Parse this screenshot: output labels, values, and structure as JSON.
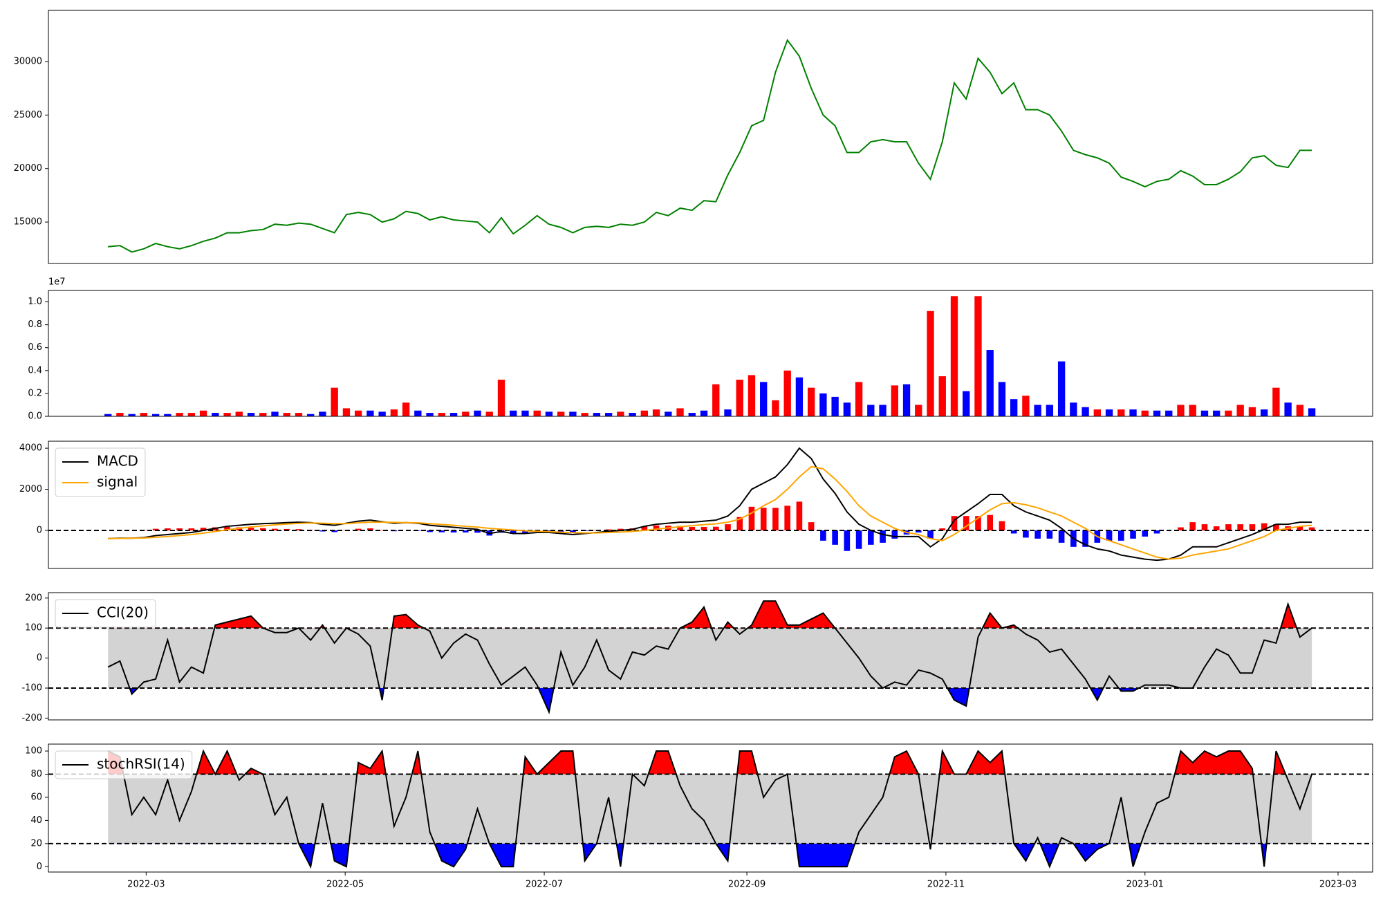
{
  "chart_data": {
    "type": "multi-panel",
    "x": [
      2022.13,
      2022.14,
      2022.15,
      2022.16,
      2022.17,
      2022.18,
      2022.19,
      2022.2,
      2022.21,
      2022.22,
      2022.23,
      2022.24,
      2022.25,
      2022.26,
      2022.27,
      2022.28,
      2022.29,
      2022.3,
      2022.31,
      2022.32,
      2022.33,
      2022.34,
      2022.35,
      2022.36,
      2022.37,
      2022.38,
      2022.39,
      2022.4,
      2022.41,
      2022.42,
      2022.43,
      2022.44,
      2022.45,
      2022.46,
      2022.47,
      2022.48,
      2022.49,
      2022.5,
      2022.51,
      2022.52,
      2022.53,
      2022.54,
      2022.55,
      2022.56,
      2022.57,
      2022.58,
      2022.59,
      2022.6,
      2022.61,
      2022.62,
      2022.63,
      2022.64,
      2022.65,
      2022.66,
      2022.67,
      2022.68,
      2022.69,
      2022.7,
      2022.71,
      2022.72,
      2022.73,
      2022.74,
      2022.75,
      2022.76,
      2022.77,
      2022.78,
      2022.79,
      2022.8,
      2022.81,
      2022.82,
      2022.83,
      2022.84,
      2022.85,
      2022.86,
      2022.87,
      2022.88,
      2022.89,
      2022.9,
      2022.91,
      2022.92,
      2022.93,
      2022.94,
      2022.95,
      2022.96,
      2022.97,
      2022.98,
      2022.99,
      2023.0,
      2023.01,
      2023.02,
      2023.03,
      2023.04,
      2023.05,
      2023.06,
      2023.07,
      2023.08,
      2023.09,
      2023.1,
      2023.11,
      2023.12,
      2023.13,
      2023.14
    ],
    "xlim": [
      2022.08,
      2023.191
    ],
    "xticks": [
      {
        "value": 2022.162,
        "label": "2022-03"
      },
      {
        "value": 2022.329,
        "label": "2022-05"
      },
      {
        "value": 2022.496,
        "label": "2022-07"
      },
      {
        "value": 2022.666,
        "label": "2022-09"
      },
      {
        "value": 2022.833,
        "label": "2022-11"
      },
      {
        "value": 2023.0,
        "label": "2023-01"
      },
      {
        "value": 2023.162,
        "label": "2023-03"
      }
    ],
    "panels": [
      {
        "type": "line",
        "ylim": [
          11130,
          34780
        ],
        "yticks": [
          15000,
          20000,
          25000,
          30000
        ],
        "series": [
          {
            "color": "green",
            "values": [
              12700,
              12800,
              12200,
              12500,
              13000,
              12700,
              12500,
              12800,
              13200,
              13500,
              14000,
              14000,
              14200,
              14300,
              14800,
              14700,
              14900,
              14800,
              14400,
              14000,
              15700,
              15900,
              15700,
              15000,
              15300,
              16000,
              15800,
              15200,
              15500,
              15200,
              15100,
              15000,
              14000,
              15400,
              13900,
              14700,
              15600,
              14800,
              14500,
              14000,
              14500,
              14600,
              14500,
              14800,
              14700,
              15000,
              15900,
              15600,
              16300,
              16100,
              17000,
              16900,
              19400,
              21500,
              24000,
              24500,
              29000,
              32000,
              30500,
              27500,
              25000,
              24000,
              21500,
              21500,
              22500,
              22700,
              22500,
              22500,
              20500,
              19000,
              22500,
              28000,
              26500,
              30300,
              29000,
              27000,
              28000,
              25500,
              25500,
              25000,
              23500,
              21700,
              21300,
              21000,
              20500,
              19200,
              18800,
              18300,
              18800,
              19000,
              19800,
              19300,
              18500,
              18500,
              19000,
              19700,
              21000,
              21200,
              20300,
              20100,
              21700,
              21700
            ]
          }
        ]
      },
      {
        "type": "bar",
        "ylim": [
          0,
          1.1
        ],
        "offset_text": "1e7",
        "yticks": [
          {
            "value": 0,
            "label": "0.0"
          },
          0.2,
          0.4,
          0.6,
          0.8,
          {
            "value": 1,
            "label": "1.0"
          }
        ],
        "values": [
          0.02,
          0.03,
          0.02,
          0.03,
          0.02,
          0.02,
          0.03,
          0.03,
          0.05,
          0.03,
          0.03,
          0.04,
          0.03,
          0.03,
          0.04,
          0.03,
          0.03,
          0.02,
          0.04,
          0.25,
          0.07,
          0.05,
          0.05,
          0.04,
          0.06,
          0.12,
          0.05,
          0.03,
          0.03,
          0.03,
          0.04,
          0.05,
          0.04,
          0.32,
          0.05,
          0.05,
          0.05,
          0.04,
          0.04,
          0.04,
          0.03,
          0.03,
          0.03,
          0.04,
          0.03,
          0.05,
          0.06,
          0.04,
          0.07,
          0.03,
          0.05,
          0.28,
          0.06,
          0.32,
          0.36,
          0.3,
          0.14,
          0.4,
          0.34,
          0.25,
          0.2,
          0.17,
          0.12,
          0.3,
          0.1,
          0.1,
          0.27,
          0.28,
          0.1,
          0.92,
          0.35,
          1.05,
          0.22,
          1.05,
          0.58,
          0.3,
          0.15,
          0.18,
          0.1,
          0.1,
          0.48,
          0.12,
          0.08,
          0.06,
          0.06,
          0.06,
          0.06,
          0.05,
          0.05,
          0.05,
          0.1,
          0.1,
          0.05,
          0.05,
          0.05,
          0.1,
          0.08,
          0.06,
          0.25,
          0.12,
          0.1,
          0.07
        ],
        "colors": [
          "blue",
          "red",
          "blue",
          "red",
          "blue",
          "blue",
          "red",
          "red",
          "red",
          "blue",
          "red",
          "red",
          "blue",
          "red",
          "blue",
          "red",
          "red",
          "blue",
          "blue",
          "red",
          "red",
          "red",
          "blue",
          "blue",
          "red",
          "red",
          "blue",
          "blue",
          "red",
          "blue",
          "red",
          "blue",
          "red",
          "red",
          "blue",
          "blue",
          "red",
          "blue",
          "red",
          "blue",
          "red",
          "blue",
          "blue",
          "red",
          "blue",
          "red",
          "red",
          "blue",
          "red",
          "blue",
          "blue",
          "red",
          "blue",
          "red",
          "red",
          "blue",
          "red",
          "red",
          "blue",
          "red",
          "blue",
          "blue",
          "blue",
          "red",
          "blue",
          "blue",
          "red",
          "blue",
          "red",
          "red",
          "red",
          "red",
          "blue",
          "red",
          "blue",
          "blue",
          "blue",
          "red",
          "blue",
          "blue",
          "blue",
          "blue",
          "blue",
          "red",
          "blue",
          "red",
          "blue",
          "red",
          "blue",
          "blue",
          "red",
          "red",
          "blue",
          "blue",
          "red",
          "red",
          "red",
          "blue",
          "red",
          "blue",
          "red",
          "blue"
        ]
      },
      {
        "type": "line",
        "ylim": [
          -1850,
          4340
        ],
        "yticks": [
          0,
          2000,
          4000
        ],
        "hlines": [
          0
        ],
        "legend": "upper left",
        "histogram": {
          "pos_color": "red",
          "neg_color": "blue",
          "values": [
            0,
            10,
            0,
            20,
            80,
            100,
            100,
            100,
            130,
            150,
            170,
            150,
            130,
            110,
            80,
            70,
            60,
            20,
            -50,
            -80,
            20,
            80,
            100,
            20,
            -40,
            0,
            -20,
            -80,
            -90,
            -100,
            -100,
            -110,
            -250,
            -110,
            -170,
            -130,
            -60,
            -40,
            -60,
            -90,
            -30,
            20,
            50,
            80,
            100,
            200,
            240,
            230,
            220,
            170,
            170,
            180,
            300,
            650,
            1150,
            1100,
            1100,
            1200,
            1400,
            400,
            -500,
            -700,
            -1000,
            -900,
            -700,
            -600,
            -400,
            -200,
            -100,
            -400,
            100,
            700,
            700,
            700,
            750,
            450,
            -150,
            -350,
            -400,
            -400,
            -600,
            -800,
            -800,
            -600,
            -500,
            -500,
            -400,
            -300,
            -150,
            0,
            150,
            400,
            300,
            200,
            300,
            300,
            300,
            350,
            300,
            200,
            200,
            150
          ]
        },
        "series": [
          {
            "name": "MACD",
            "color": "black",
            "values": [
              -400,
              -380,
              -380,
              -350,
              -250,
              -200,
              -150,
              -100,
              0,
              100,
              200,
              250,
              300,
              330,
              350,
              380,
              400,
              380,
              300,
              250,
              350,
              450,
              500,
              420,
              350,
              380,
              350,
              250,
              200,
              150,
              100,
              50,
              -150,
              -50,
              -150,
              -150,
              -100,
              -100,
              -150,
              -200,
              -150,
              -100,
              -50,
              0,
              50,
              200,
              300,
              350,
              400,
              400,
              450,
              500,
              700,
              1200,
              2000,
              2300,
              2600,
              3200,
              4000,
              3500,
              2500,
              1800,
              900,
              300,
              0,
              -200,
              -300,
              -300,
              -300,
              -800,
              -400,
              500,
              900,
              1300,
              1750,
              1750,
              1200,
              900,
              700,
              500,
              100,
              -400,
              -700,
              -900,
              -1000,
              -1200,
              -1300,
              -1400,
              -1450,
              -1400,
              -1200,
              -800,
              -800,
              -800,
              -600,
              -400,
              -200,
              50,
              300,
              300,
              400,
              400
            ]
          },
          {
            "name": "signal",
            "color": "orange",
            "values": [
              -400,
              -390,
              -380,
              -370,
              -330,
              -300,
              -250,
              -200,
              -130,
              -50,
              30,
              100,
              170,
              220,
              270,
              310,
              340,
              360,
              350,
              330,
              330,
              370,
              400,
              400,
              390,
              380,
              370,
              330,
              290,
              250,
              200,
              160,
              100,
              60,
              20,
              -20,
              -40,
              -60,
              -90,
              -110,
              -120,
              -120,
              -100,
              -80,
              -50,
              0,
              60,
              120,
              180,
              230,
              280,
              320,
              400,
              550,
              850,
              1200,
              1500,
              2000,
              2600,
              3100,
              3000,
              2500,
              1900,
              1200,
              700,
              400,
              100,
              -100,
              -200,
              -400,
              -500,
              -200,
              200,
              600,
              1000,
              1300,
              1350,
              1250,
              1100,
              900,
              700,
              400,
              100,
              -300,
              -500,
              -700,
              -900,
              -1100,
              -1300,
              -1400,
              -1350,
              -1200,
              -1100,
              -1000,
              -900,
              -700,
              -500,
              -300,
              0,
              100,
              200,
              250
            ]
          }
        ]
      },
      {
        "type": "oscillator",
        "ylim": [
          -206,
          218
        ],
        "yticks": [
          -200,
          -100,
          0,
          100,
          200
        ],
        "hlines": [
          -100,
          100
        ],
        "legend": "upper left",
        "fill": {
          "band": "lightgray",
          "above": "red",
          "below": "blue"
        },
        "series": [
          {
            "name": "CCI(20)",
            "color": "black",
            "values": [
              -30,
              -10,
              -120,
              -80,
              -70,
              60,
              -80,
              -30,
              -50,
              110,
              120,
              130,
              140,
              100,
              85,
              85,
              100,
              60,
              110,
              50,
              100,
              80,
              40,
              -140,
              140,
              145,
              110,
              90,
              0,
              50,
              80,
              60,
              -20,
              -90,
              -60,
              -30,
              -90,
              -180,
              20,
              -90,
              -30,
              60,
              -40,
              -70,
              20,
              10,
              40,
              30,
              100,
              120,
              170,
              60,
              120,
              80,
              110,
              190,
              190,
              110,
              110,
              130,
              150,
              100,
              50,
              0,
              -60,
              -100,
              -80,
              -90,
              -40,
              -50,
              -70,
              -140,
              -160,
              70,
              150,
              100,
              110,
              80,
              60,
              20,
              30,
              -20,
              -70,
              -140,
              -60,
              -110,
              -110,
              -90,
              -90,
              -90,
              -100,
              -100,
              -30,
              30,
              10,
              -50,
              -50,
              60,
              50,
              180,
              70,
              100
            ]
          }
        ]
      },
      {
        "type": "oscillator",
        "ylim": [
          -4.6,
          106
        ],
        "yticks": [
          0,
          20,
          40,
          60,
          80,
          100
        ],
        "hlines": [
          20,
          80
        ],
        "legend": "upper left",
        "fill": {
          "band": "lightgray",
          "above": "red",
          "below": "blue"
        },
        "series": [
          {
            "name": "stochRSI(14)",
            "color": "black",
            "values": [
              100,
              95,
              45,
              60,
              45,
              75,
              40,
              65,
              100,
              80,
              100,
              75,
              85,
              80,
              45,
              60,
              20,
              0,
              55,
              5,
              0,
              90,
              85,
              100,
              35,
              60,
              100,
              30,
              5,
              0,
              15,
              50,
              20,
              0,
              0,
              95,
              80,
              90,
              100,
              100,
              5,
              20,
              60,
              0,
              80,
              70,
              100,
              100,
              70,
              50,
              40,
              20,
              5,
              100,
              100,
              60,
              75,
              80,
              0,
              0,
              0,
              0,
              0,
              30,
              45,
              60,
              95,
              100,
              80,
              15,
              100,
              80,
              80,
              100,
              90,
              100,
              20,
              5,
              25,
              0,
              25,
              20,
              5,
              15,
              20,
              60,
              0,
              30,
              55,
              60,
              100,
              90,
              100,
              95,
              100,
              100,
              85,
              0,
              100,
              75,
              50,
              80
            ]
          }
        ]
      }
    ]
  }
}
